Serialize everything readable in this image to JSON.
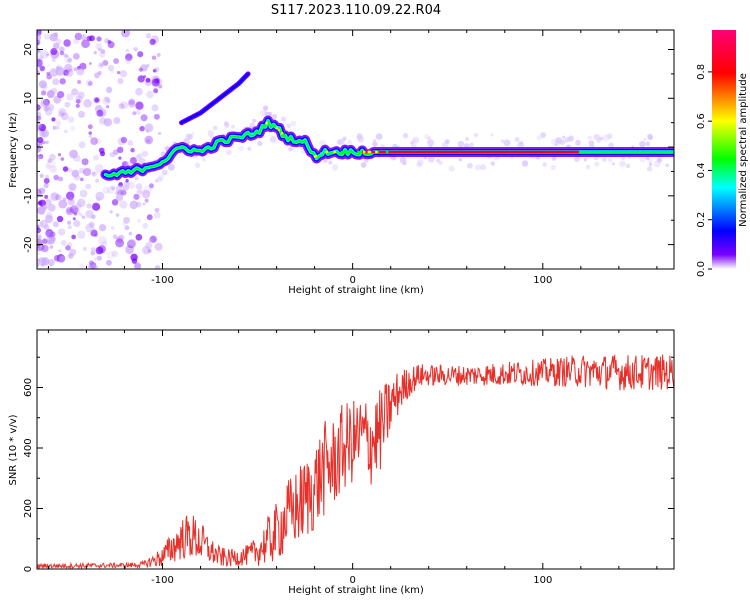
{
  "title": "S117.2023.110.09.22.R04",
  "chart_data": [
    {
      "type": "heatmap",
      "title": "S117.2023.110.09.22.R04",
      "xlabel": "Height of straight line (km)",
      "ylabel": "Frequency (Hz)",
      "xlim": [
        -166,
        169
      ],
      "ylim": [
        -25,
        24
      ],
      "xticks": [
        -100,
        0,
        100
      ],
      "yticks": [
        -20,
        -10,
        0,
        10,
        20
      ],
      "colorbar": {
        "label": "Normalized spectral amplitude",
        "range": [
          0.0,
          0.97
        ],
        "ticks": [
          "0.0",
          "0.2",
          "0.4",
          "0.6",
          "0.8"
        ],
        "colormap": [
          "#ffffff",
          "#7a00ff",
          "#0000ff",
          "#00ffff",
          "#00ff00",
          "#ffff00",
          "#ff0000",
          "#ff0077"
        ]
      },
      "ridge": {
        "x": [
          -130,
          -115,
          -100,
          -90,
          -80,
          -70,
          -60,
          -50,
          -45,
          -40,
          -35,
          -25,
          -20,
          -15,
          -10,
          0,
          10,
          169
        ],
        "frequency": [
          -6,
          -5,
          -3,
          0,
          -1,
          1,
          2,
          3,
          5,
          4,
          2,
          1,
          -2,
          -1,
          -1,
          -1,
          -1,
          -1
        ]
      },
      "branch": {
        "x": [
          -90,
          -80,
          -70,
          -60,
          -55
        ],
        "frequency": [
          5,
          7,
          10,
          13,
          15
        ]
      }
    },
    {
      "type": "line",
      "xlabel": "Height of straight line (km)",
      "ylabel": "SNR (10 * v/v)",
      "xlim": [
        -166,
        169
      ],
      "ylim": [
        0,
        790
      ],
      "xticks": [
        -100,
        0,
        100
      ],
      "yticks": [
        0,
        200,
        400,
        600
      ],
      "color": "#e8302a",
      "envelope": {
        "x": [
          -166,
          -120,
          -110,
          -100,
          -95,
          -90,
          -85,
          -80,
          -75,
          -70,
          -65,
          -60,
          -55,
          -50,
          -45,
          -40,
          -35,
          -30,
          -25,
          -20,
          -15,
          -10,
          -5,
          0,
          5,
          10,
          15,
          20,
          25,
          30,
          35,
          40,
          50,
          60,
          80,
          100,
          120,
          140,
          169
        ],
        "mean": [
          10,
          12,
          15,
          40,
          70,
          100,
          110,
          90,
          60,
          40,
          35,
          40,
          45,
          60,
          90,
          120,
          170,
          200,
          230,
          270,
          330,
          350,
          400,
          420,
          440,
          420,
          460,
          540,
          590,
          620,
          640,
          640,
          640,
          640,
          645,
          650,
          655,
          650,
          650
        ],
        "spread": [
          8,
          8,
          10,
          35,
          55,
          70,
          80,
          70,
          45,
          35,
          30,
          30,
          35,
          50,
          80,
          100,
          120,
          130,
          140,
          150,
          160,
          150,
          150,
          140,
          140,
          150,
          140,
          100,
          70,
          50,
          40,
          35,
          35,
          35,
          40,
          45,
          55,
          60,
          60
        ]
      }
    }
  ]
}
